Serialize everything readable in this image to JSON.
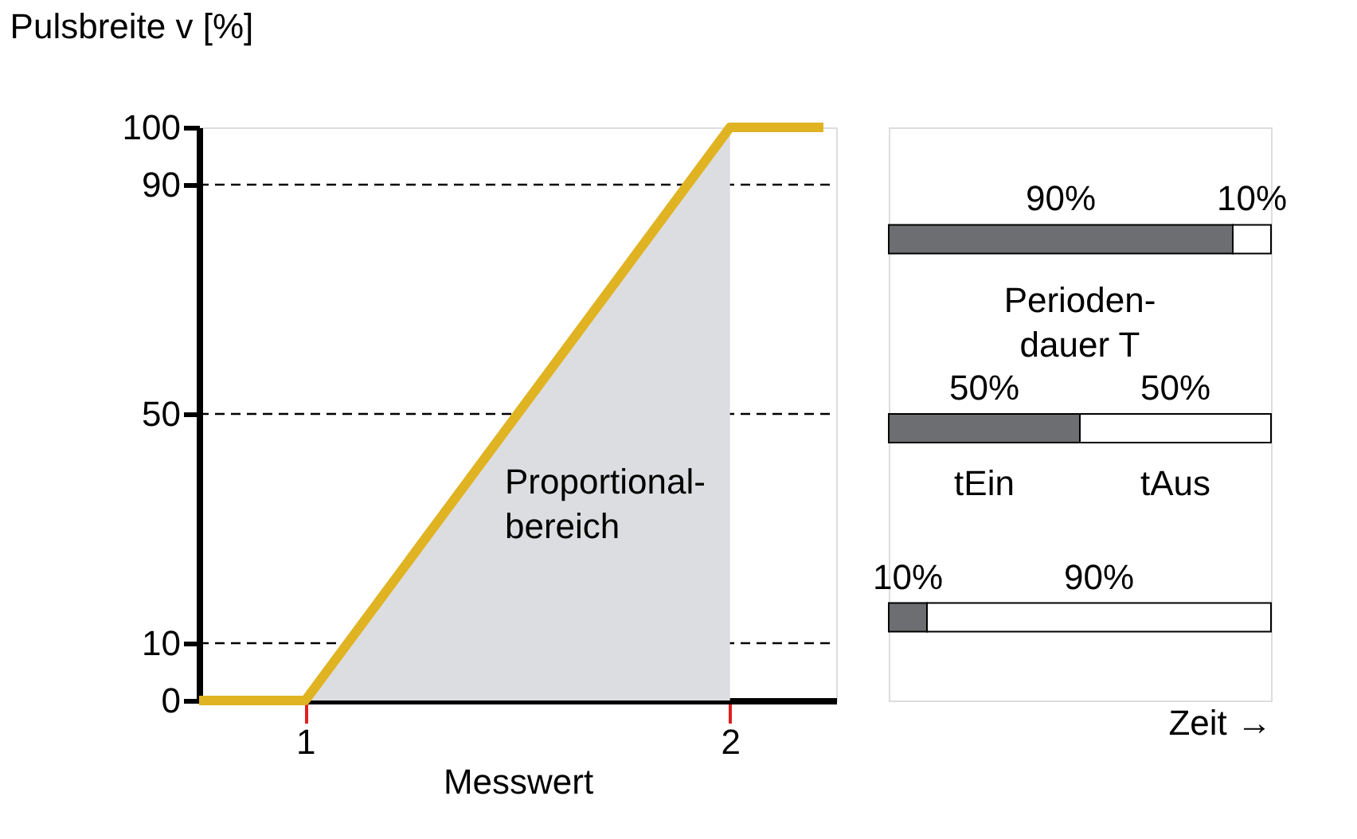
{
  "chart_data": [
    {
      "type": "line",
      "ylabel": "Pulsbreite v [%]",
      "xlabel": "Messwert",
      "xlim": [
        0.75,
        2.25
      ],
      "xticks": [
        1,
        2
      ],
      "ylim": [
        0,
        100
      ],
      "yticks": [
        0,
        10,
        50,
        90,
        100
      ],
      "grid": false,
      "series": [
        {
          "type": "area",
          "x": [
            1,
            2
          ],
          "values": [
            0,
            100
          ],
          "color": "#dcdde0"
        },
        {
          "type": "line",
          "x": [
            0.75,
            1,
            2,
            2.22
          ],
          "values": [
            0,
            0,
            100,
            100
          ],
          "color": "#e0b323"
        }
      ],
      "ref_lines": [
        {
          "axis": "y",
          "value": 90,
          "line_style": "dashed"
        },
        {
          "axis": "y",
          "value": 50,
          "line_style": "dashed"
        },
        {
          "axis": "y",
          "value": 10,
          "line_style": "dashed"
        }
      ],
      "annotations": [
        "Proportional-\nbereich"
      ]
    },
    {
      "type": "bar",
      "orientation": "horizontal",
      "stacked": true,
      "categories": [
        null,
        null,
        null
      ],
      "xlim": [
        0,
        100
      ],
      "tick_labels": false,
      "xlabel": "Zeit →",
      "series": [
        {
          "color": "#6d6e71",
          "values": [
            90,
            50,
            10
          ],
          "value_labels": [
            "90%",
            "50%",
            "10%"
          ]
        },
        {
          "color": "#ffffff",
          "values": [
            10,
            50,
            90
          ],
          "value_labels": [
            "10%",
            "50%",
            "90%"
          ]
        }
      ],
      "annotations": [
        "Perioden-\ndauer T",
        "tEin",
        "tAus"
      ]
    }
  ]
}
